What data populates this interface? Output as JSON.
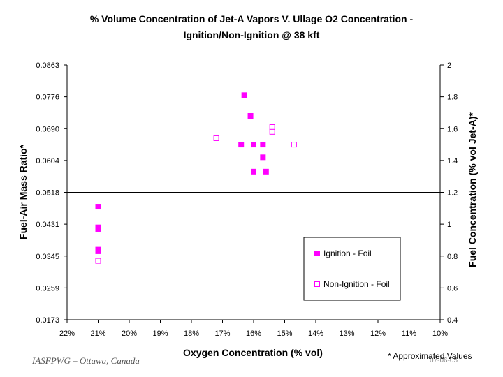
{
  "chart_data": {
    "type": "scatter",
    "title": [
      "% Volume Concentration of Jet-A Vapors V. Ullage O2 Concentration -",
      "Ignition/Non-Ignition @ 38 kft"
    ],
    "xlabel": "Oxygen Concentration (% vol)",
    "ylabel_left": "Fuel-Air Mass Ratio*",
    "ylabel_right": "Fuel Concentration (% vol Jet-A)*",
    "x_ticks": [
      22,
      21,
      20,
      19,
      18,
      17,
      16,
      15,
      14,
      13,
      12,
      11,
      10
    ],
    "x_tick_labels": [
      "22%",
      "21%",
      "20%",
      "19%",
      "18%",
      "17%",
      "16%",
      "15%",
      "14%",
      "13%",
      "12%",
      "11%",
      "10%"
    ],
    "xlim": [
      22,
      10
    ],
    "ylim_right": [
      0.4,
      2.0
    ],
    "right_tick_labels": [
      "2",
      "1.8",
      "1.6",
      "1.4",
      "1.2",
      "1",
      "0.8",
      "0.6",
      "0.4"
    ],
    "left_tick_labels": [
      "0.0863",
      "0.0776",
      "0.0690",
      "0.0604",
      "0.0518",
      "0.0431",
      "0.0345",
      "0.0259",
      "0.0173"
    ],
    "reference_line_y": 1.2,
    "grid": false,
    "legend_position": "bottom-right",
    "series": [
      {
        "name": "Ignition - Foil",
        "marker": "filled-square",
        "color": "#ff00ff",
        "points": [
          [
            21.0,
            1.11
          ],
          [
            21.0,
            0.98
          ],
          [
            21.0,
            0.97
          ],
          [
            21.0,
            0.84
          ],
          [
            21.0,
            0.83
          ],
          [
            16.3,
            1.81
          ],
          [
            16.1,
            1.68
          ],
          [
            16.4,
            1.5
          ],
          [
            16.0,
            1.5
          ],
          [
            15.7,
            1.5
          ],
          [
            15.7,
            1.42
          ],
          [
            16.0,
            1.33
          ],
          [
            15.6,
            1.33
          ]
        ]
      },
      {
        "name": "Non-Ignition - Foil",
        "marker": "hollow-square",
        "color": "#ff00ff",
        "points": [
          [
            21.0,
            0.77
          ],
          [
            17.2,
            1.54
          ],
          [
            15.4,
            1.61
          ],
          [
            15.4,
            1.58
          ],
          [
            14.7,
            1.5
          ]
        ]
      }
    ]
  },
  "footer": {
    "left_text": "IASFPWG – Ottawa, Canada",
    "right_text": "* Approximated Values",
    "date": "07-06-05"
  }
}
